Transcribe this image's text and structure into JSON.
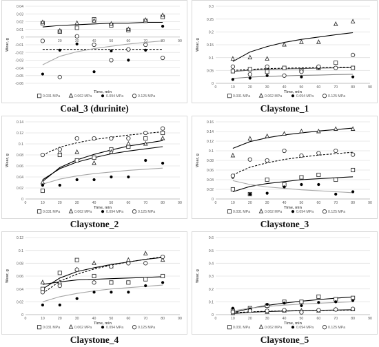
{
  "legend_labels": [
    "0.031 MPa",
    "0.062 MPa",
    "0.094 MPa",
    "0.125 MPa"
  ],
  "series_colors": {
    "s1": "#595959",
    "s2": "#7f7f7f",
    "s3": "#000000",
    "s4": "#7f7f7f"
  },
  "chart_data": [
    {
      "type": "scatter",
      "caption": "Coal_3 (durinite)",
      "xlabel": "Time, min",
      "ylabel": "Wear, g",
      "xlim": [
        0,
        90
      ],
      "ylim": [
        -0.06,
        0.04
      ],
      "x_ticks": [
        10,
        20,
        30,
        40,
        50,
        60,
        70,
        80,
        90
      ],
      "y_ticks": [
        0.04,
        0.03,
        0.02,
        0.01,
        0,
        -0.01,
        -0.02,
        -0.03,
        -0.04,
        -0.05,
        -0.06
      ],
      "y_tick_labels": [
        "0.04",
        "0.03",
        "0.02",
        "0.01",
        "0",
        "-0.01",
        "-0.02",
        "-0.03",
        "-0.04",
        "-0.05",
        "-0.06"
      ],
      "x_axis_at_zero": true,
      "x": [
        10,
        20,
        30,
        40,
        50,
        60,
        70,
        80
      ],
      "series": [
        {
          "name": "0.031 MPa",
          "marker": "square",
          "values": [
            0.018,
            0.007,
            0.012,
            0.023,
            0.015,
            0.009,
            0.021,
            0.026
          ],
          "trend": [
            0.013,
            0.015,
            0.016,
            0.017,
            0.018,
            0.018,
            0.019,
            0.019
          ],
          "dash": "solid",
          "trend_color": "#000000"
        },
        {
          "name": "0.062 MPa",
          "marker": "triangle",
          "values": [
            0.019,
            0.008,
            0.018,
            0.021,
            0.017,
            0.01,
            0.022,
            0.028
          ],
          "trend": [],
          "dash": "solid",
          "trend_color": "#7f7f7f"
        },
        {
          "name": "0.094 MPa",
          "marker": "dot",
          "values": [
            -0.048,
            -0.017,
            -0.009,
            -0.045,
            -0.018,
            -0.03,
            -0.017,
            0.014
          ],
          "trend": [
            -0.016,
            -0.016,
            -0.016,
            -0.016,
            -0.016,
            -0.016,
            -0.016,
            -0.016
          ],
          "dash": "dashed",
          "trend_color": "#000000"
        },
        {
          "name": "0.125 MPa",
          "marker": "circle",
          "values": [
            -0.005,
            -0.052,
            0.001,
            -0.01,
            -0.03,
            -0.016,
            -0.01,
            -0.027
          ],
          "trend": [
            -0.036,
            -0.025,
            -0.019,
            -0.015,
            -0.012,
            -0.009,
            -0.007,
            -0.005
          ],
          "dash": "solid",
          "trend_color": "#a6a6a6"
        }
      ]
    },
    {
      "type": "scatter",
      "caption": "Claystone_1",
      "xlabel": "Time, min",
      "ylabel": "Wear, g",
      "xlim": [
        0,
        90
      ],
      "ylim": [
        0,
        0.3
      ],
      "x_ticks": [
        0,
        10,
        20,
        30,
        40,
        50,
        60,
        70,
        80,
        90
      ],
      "y_ticks": [
        0,
        0.05,
        0.1,
        0.15,
        0.2,
        0.25,
        0.3
      ],
      "y_tick_labels": [
        "0",
        "0.05",
        "0.1",
        "0.15",
        "0.2",
        "0.25",
        "0.3"
      ],
      "x_axis_at_zero": false,
      "x": [
        10,
        20,
        30,
        40,
        50,
        60,
        70,
        80
      ],
      "series": [
        {
          "name": "0.031 MPa",
          "marker": "square",
          "values": [
            0.047,
            0.055,
            0.045,
            0.06,
            0.05,
            0.06,
            0.08,
            0.06
          ],
          "trend": [
            0.046,
            0.051,
            0.054,
            0.056,
            0.057,
            0.059,
            0.06,
            0.061
          ],
          "dash": "solid",
          "trend_color": "#595959"
        },
        {
          "name": "0.062 MPa",
          "marker": "triangle",
          "values": [
            0.095,
            0.1,
            0.095,
            0.15,
            0.16,
            0.16,
            0.23,
            0.24
          ],
          "trend": [
            0.085,
            0.122,
            0.143,
            0.159,
            0.171,
            0.18,
            0.189,
            0.197
          ],
          "dash": "solid",
          "trend_color": "#000000"
        },
        {
          "name": "0.094 MPa",
          "marker": "dot",
          "values": [
            0.015,
            0.02,
            0.03,
            0.03,
            0.025,
            0.06,
            0.06,
            0.025
          ],
          "trend": [
            0.019,
            0.024,
            0.027,
            0.029,
            0.031,
            0.032,
            0.034,
            0.035
          ],
          "dash": "solid",
          "trend_color": "#7f7f7f"
        },
        {
          "name": "0.125 MPa",
          "marker": "circle",
          "values": [
            0.065,
            0.035,
            0.065,
            0.03,
            0.045,
            0.065,
            0.06,
            0.11
          ],
          "trend": [
            0.05,
            0.054,
            0.057,
            0.059,
            0.06,
            0.061,
            0.062,
            0.063
          ],
          "dash": "dashed",
          "trend_color": "#000000"
        }
      ]
    },
    {
      "type": "scatter",
      "caption": "Claystone_2",
      "xlabel": "Time, min",
      "ylabel": "Wear, g",
      "xlim": [
        0,
        90
      ],
      "ylim": [
        0,
        0.14
      ],
      "x_ticks": [
        0,
        10,
        20,
        30,
        40,
        50,
        60,
        70,
        80,
        90
      ],
      "y_ticks": [
        0,
        0.02,
        0.04,
        0.06,
        0.08,
        0.1,
        0.12,
        0.14
      ],
      "y_tick_labels": [
        "0",
        "0.02",
        "0.04",
        "0.06",
        "0.08",
        "0.1",
        "0.12",
        "0.14"
      ],
      "x_axis_at_zero": false,
      "x": [
        10,
        20,
        30,
        40,
        50,
        60,
        70,
        80
      ],
      "series": [
        {
          "name": "0.031 MPa",
          "marker": "square",
          "values": [
            0.015,
            0.08,
            0.07,
            0.075,
            0.09,
            0.095,
            0.11,
            0.12
          ],
          "trend": [
            0.032,
            0.057,
            0.071,
            0.081,
            0.089,
            0.096,
            0.101,
            0.106
          ],
          "dash": "solid",
          "trend_color": "#000000"
        },
        {
          "name": "0.062 MPa",
          "marker": "triangle",
          "values": [
            0.03,
            0.085,
            0.085,
            0.065,
            0.085,
            0.1,
            0.1,
            0.11
          ],
          "trend": [
            0.035,
            0.055,
            0.067,
            0.075,
            0.082,
            0.087,
            0.091,
            0.095
          ],
          "dash": "solid",
          "trend_color": "#000000"
        },
        {
          "name": "0.094 MPa",
          "marker": "dot",
          "values": [
            0.025,
            0.025,
            0.035,
            0.035,
            0.04,
            0.04,
            0.07,
            0.065
          ],
          "trend": [
            0.027,
            0.036,
            0.042,
            0.046,
            0.049,
            0.052,
            0.054,
            0.056
          ],
          "dash": "solid",
          "trend_color": "#a6a6a6"
        },
        {
          "name": "0.125 MPa",
          "marker": "circle",
          "values": [
            0.08,
            0.09,
            0.11,
            0.11,
            0.11,
            0.11,
            0.12,
            0.128
          ],
          "trend": [
            0.08,
            0.094,
            0.102,
            0.108,
            0.112,
            0.116,
            0.119,
            0.122
          ],
          "dash": "dashed",
          "trend_color": "#000000"
        }
      ]
    },
    {
      "type": "scatter",
      "caption": "Claystone_3",
      "xlabel": "Time, min",
      "ylabel": "Wear, g",
      "xlim": [
        0,
        90
      ],
      "ylim": [
        0,
        0.16
      ],
      "x_ticks": [
        0,
        10,
        20,
        30,
        40,
        50,
        60,
        70,
        80,
        90
      ],
      "y_ticks": [
        0,
        0.02,
        0.04,
        0.06,
        0.08,
        0.1,
        0.12,
        0.14,
        0.16
      ],
      "y_tick_labels": [
        "0",
        "0.02",
        "0.04",
        "0.06",
        "0.08",
        "0.1",
        "0.12",
        "0.14",
        "0.16"
      ],
      "x_axis_at_zero": false,
      "x": [
        10,
        20,
        30,
        40,
        50,
        60,
        70,
        80
      ],
      "series": [
        {
          "name": "0.031 MPa",
          "marker": "square",
          "values": [
            0.02,
            0.01,
            0.04,
            0.03,
            0.045,
            0.05,
            0.04,
            0.06
          ],
          "trend": [
            0.015,
            0.026,
            0.032,
            0.036,
            0.04,
            0.042,
            0.044,
            0.046
          ],
          "dash": "solid",
          "trend_color": "#000000"
        },
        {
          "name": "0.062 MPa",
          "marker": "triangle",
          "values": [
            0.09,
            0.125,
            0.13,
            0.135,
            0.14,
            0.14,
            0.145,
            0.145
          ],
          "trend": [
            0.105,
            0.119,
            0.127,
            0.133,
            0.137,
            0.141,
            0.144,
            0.147
          ],
          "dash": "solid",
          "trend_color": "#000000"
        },
        {
          "name": "0.094 MPa",
          "marker": "dot",
          "values": [
            0.045,
            0.01,
            0.012,
            0.025,
            0.03,
            0.03,
            0.01,
            0.015
          ],
          "trend": [
            0.038,
            0.03,
            0.025,
            0.022,
            0.019,
            0.017,
            0.015,
            0.013
          ],
          "dash": "solid",
          "trend_color": "#a6a6a6"
        },
        {
          "name": "0.125 MPa",
          "marker": "circle",
          "values": [
            0.048,
            0.082,
            0.08,
            0.1,
            0.09,
            0.095,
            0.1,
            0.092
          ],
          "trend": [
            0.05,
            0.066,
            0.075,
            0.082,
            0.087,
            0.091,
            0.094,
            0.097
          ],
          "dash": "dashed",
          "trend_color": "#000000"
        }
      ]
    },
    {
      "type": "scatter",
      "caption": "Claystone_4",
      "xlabel": "Time, min",
      "ylabel": "Wear, g",
      "xlim": [
        0,
        90
      ],
      "ylim": [
        0,
        0.12
      ],
      "x_ticks": [
        0,
        10,
        20,
        30,
        40,
        50,
        60,
        70,
        80,
        90
      ],
      "y_ticks": [
        0,
        0.02,
        0.04,
        0.06,
        0.08,
        0.1,
        0.12
      ],
      "y_tick_labels": [
        "0",
        "0.02",
        "0.04",
        "0.06",
        "0.08",
        "0.1",
        "0.12"
      ],
      "x_axis_at_zero": false,
      "x": [
        10,
        20,
        30,
        40,
        50,
        60,
        70,
        80
      ],
      "series": [
        {
          "name": "0.031 MPa",
          "marker": "square",
          "values": [
            0.04,
            0.065,
            0.085,
            0.06,
            0.05,
            0.05,
            0.055,
            0.06
          ],
          "trend": [
            0.047,
            0.051,
            0.054,
            0.055,
            0.056,
            0.057,
            0.058,
            0.059
          ],
          "dash": "solid",
          "trend_color": "#000000"
        },
        {
          "name": "0.062 MPa",
          "marker": "triangle",
          "values": [
            0.05,
            0.05,
            0.07,
            0.08,
            0.075,
            0.085,
            0.095,
            0.085
          ],
          "trend": [
            0.04,
            0.057,
            0.067,
            0.073,
            0.078,
            0.082,
            0.086,
            0.089
          ],
          "dash": "solid",
          "trend_color": "#000000"
        },
        {
          "name": "0.094 MPa",
          "marker": "dot",
          "values": [
            0.015,
            0.015,
            0.025,
            0.035,
            0.035,
            0.035,
            0.045,
            0.05
          ],
          "trend": [
            0.02,
            0.028,
            0.033,
            0.037,
            0.04,
            0.042,
            0.044,
            0.046
          ],
          "dash": "solid",
          "trend_color": "#a6a6a6"
        },
        {
          "name": "0.125 MPa",
          "marker": "circle",
          "values": [
            0.035,
            0.045,
            0.07,
            0.05,
            0.075,
            0.08,
            0.08,
            0.09
          ],
          "trend": [
            0.033,
            0.052,
            0.063,
            0.071,
            0.077,
            0.082,
            0.086,
            0.09
          ],
          "dash": "dashed",
          "trend_color": "#000000"
        }
      ]
    },
    {
      "type": "scatter",
      "caption": "Claystone_5",
      "xlabel": "Time, min",
      "ylabel": "Wear, g",
      "xlim": [
        0,
        90
      ],
      "ylim": [
        0,
        0.6
      ],
      "x_ticks": [
        0,
        10,
        20,
        30,
        40,
        50,
        60,
        70,
        80,
        90
      ],
      "y_ticks": [
        0,
        0.1,
        0.2,
        0.3,
        0.4,
        0.5,
        0.6
      ],
      "y_tick_labels": [
        "0",
        "0.1",
        "0.2",
        "0.3",
        "0.4",
        "0.5",
        "0.6"
      ],
      "x_axis_at_zero": false,
      "x": [
        10,
        20,
        30,
        40,
        50,
        60,
        70,
        80
      ],
      "series": [
        {
          "name": "0.031 MPa",
          "marker": "square",
          "values": [
            0.03,
            0.05,
            0.07,
            0.1,
            0.1,
            0.14,
            0.12,
            0.13
          ],
          "trend": [
            0.016,
            0.048,
            0.072,
            0.09,
            0.105,
            0.117,
            0.128,
            0.138
          ],
          "dash": "solid",
          "trend_color": "#000000"
        },
        {
          "name": "0.062 MPa",
          "marker": "triangle",
          "values": [
            0.01,
            0.03,
            0.02,
            0.03,
            0.03,
            0.03,
            0.04,
            0.04
          ],
          "trend": [
            0.008,
            0.018,
            0.024,
            0.028,
            0.031,
            0.034,
            0.036,
            0.038
          ],
          "dash": "solid",
          "trend_color": "#000000"
        },
        {
          "name": "0.094 MPa",
          "marker": "dot",
          "values": [
            0.05,
            0.045,
            0.08,
            0.09,
            0.07,
            0.095,
            0.1,
            0.11
          ],
          "trend": [
            0.03,
            0.05,
            0.064,
            0.074,
            0.082,
            0.089,
            0.095,
            0.1
          ],
          "dash": "solid",
          "trend_color": "#a6a6a6"
        },
        {
          "name": "0.125 MPa",
          "marker": "circle",
          "values": [
            0.02,
            0.03,
            0.03,
            0.035,
            0.018,
            0.035,
            0.04,
            0.045
          ],
          "trend": [
            0.015,
            0.022,
            0.026,
            0.029,
            0.031,
            0.033,
            0.034,
            0.036
          ],
          "dash": "dashed",
          "trend_color": "#000000"
        }
      ]
    }
  ]
}
